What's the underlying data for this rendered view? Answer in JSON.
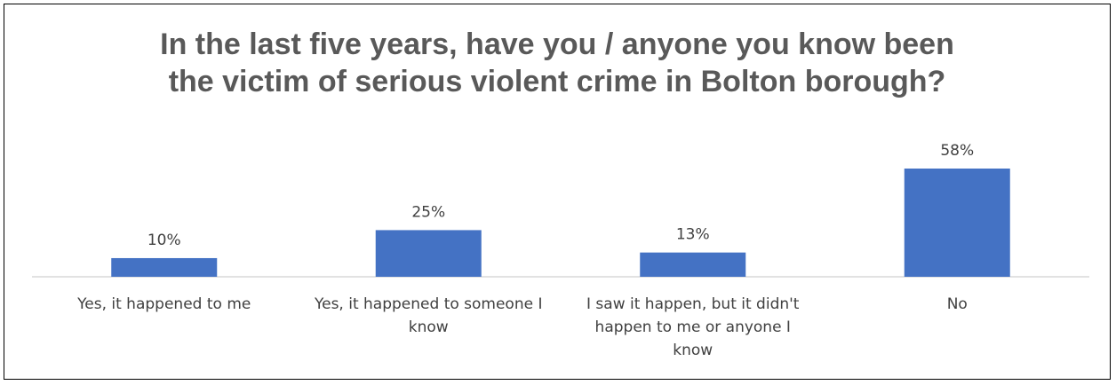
{
  "chart_data": {
    "type": "bar",
    "title_lines": [
      "In the last five years, have you / anyone you know been",
      "the victim of serious violent crime in Bolton borough?"
    ],
    "categories": [
      [
        "Yes, it happened to me"
      ],
      [
        "Yes, it happened to someone I",
        "know"
      ],
      [
        "I saw it happen, but it didn't",
        "happen to me or anyone I",
        "know"
      ],
      [
        "No"
      ]
    ],
    "values": [
      10,
      25,
      13,
      58
    ],
    "data_labels": [
      "10%",
      "25%",
      "13%",
      "58%"
    ],
    "unit": "%",
    "bar_color": "#4472C4",
    "ylim": [
      0,
      62
    ],
    "grid": false,
    "legend": "none"
  }
}
